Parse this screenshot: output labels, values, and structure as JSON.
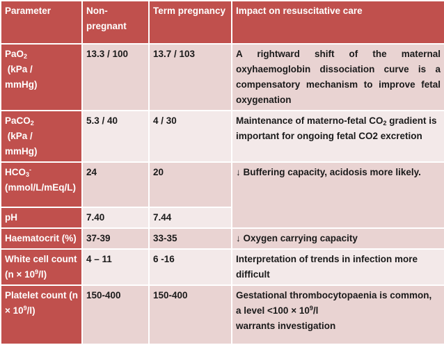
{
  "table": {
    "headers": [
      "Parameter",
      "Non-pregnant",
      "Term pregnancy",
      "Impact on resuscitative care"
    ],
    "rows": [
      {
        "parameter": {
          "main": "PaO",
          "sub": "2",
          "lines": [
            "(kPa /",
            "mmHg)"
          ]
        },
        "non_pregnant": "13.3 / 100",
        "term_pregnancy": "13.7 / 103",
        "impact": "A rightward shift of the maternal oxyhaemoglobin dissociation curve is a compensatory mechanism to improve fetal oxygenation"
      },
      {
        "parameter": {
          "main": "PaCO",
          "sub": "2",
          "lines": [
            "(kPa /",
            "mmHg)"
          ]
        },
        "non_pregnant": "5.3 / 40",
        "term_pregnancy": "4 / 30",
        "impact": {
          "pre": "Maintenance of materno-fetal CO",
          "sub": "2",
          "post": " gradient is important for ongoing fetal CO2 excretion"
        }
      },
      {
        "parameter": {
          "main": "HCO",
          "sub": "3",
          "sup": "-",
          "lines": [
            "(mmol/L/mEq/L)"
          ]
        },
        "non_pregnant": "24",
        "term_pregnancy": "20",
        "impact": "↓ Buffering capacity, acidosis more likely."
      },
      {
        "parameter": "pH",
        "non_pregnant": "7.40",
        "term_pregnancy": "7.44"
      },
      {
        "parameter": "Haematocrit (%)",
        "non_pregnant": "37-39",
        "term_pregnancy": "33-35",
        "impact": "↓ Oxygen carrying capacity"
      },
      {
        "parameter": {
          "line1": "White cell count",
          "pre": "(n × 10",
          "sup": "9",
          "post": "/l)"
        },
        "non_pregnant": "4 – 11",
        "term_pregnancy": "6 -16",
        "impact": "Interpretation of trends in infection more difficult"
      },
      {
        "parameter": {
          "line1": "Platelet count (n",
          "pre": "× 10",
          "sup": "9",
          "post": "/l)"
        },
        "non_pregnant": "150-400",
        "term_pregnancy": "150-400",
        "impact": {
          "line1": "Gestational thrombocytopaenia is common,",
          "pre": "a level <100 × 10",
          "sup": "9",
          "post": "/l",
          "line3": "warrants investigation"
        }
      }
    ]
  }
}
